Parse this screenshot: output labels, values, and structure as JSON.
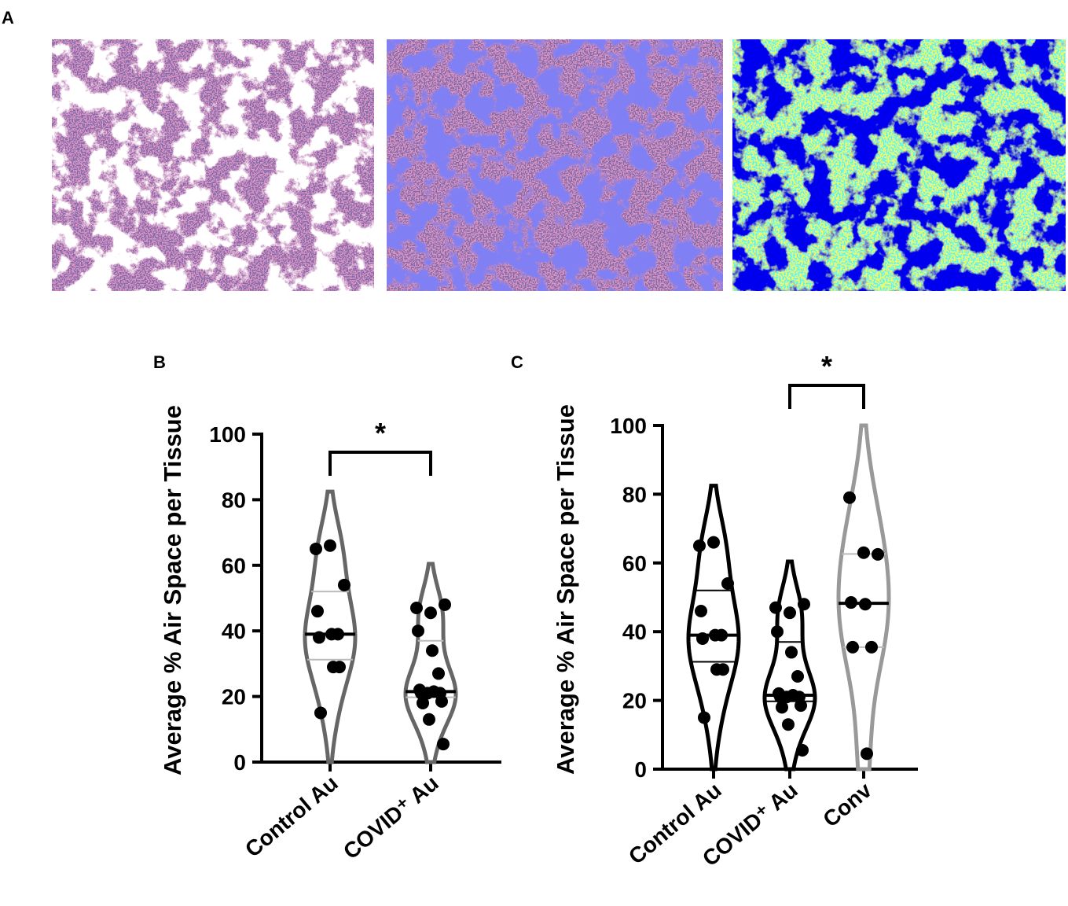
{
  "figure_label": "A",
  "chart_data": [
    {
      "type": "violin",
      "panel": "B",
      "ylabel": "Average % Air Space per Tissue",
      "categories": [
        "Control Au",
        "COVID⁺ Au"
      ],
      "colors": [
        "#666666",
        "#666666"
      ],
      "values": [
        [
          65,
          66,
          54,
          46,
          39,
          39,
          38,
          29,
          29,
          15
        ],
        [
          47,
          45.5,
          48,
          40,
          34,
          27,
          22,
          21.5,
          21,
          21,
          21,
          18.5,
          18,
          13,
          5.5
        ]
      ],
      "ylim": [
        0,
        100
      ],
      "yticks": [
        0,
        20,
        40,
        60,
        80,
        100
      ],
      "significance": [
        {
          "from": 0,
          "to": 1,
          "label": "*"
        }
      ]
    },
    {
      "type": "violin",
      "panel": "C",
      "ylabel": "Average % Air Space per Tissue",
      "categories": [
        "Control Au",
        "COVID⁺ Au",
        "Conv"
      ],
      "colors": [
        "#000000",
        "#000000",
        "#999999"
      ],
      "values": [
        [
          65,
          66,
          54,
          46,
          39,
          39,
          38,
          29,
          29,
          15
        ],
        [
          47,
          45.5,
          48,
          40,
          34,
          27,
          22,
          21.5,
          21,
          21,
          21,
          18.5,
          18,
          13,
          5.5
        ],
        [
          79,
          63,
          62.5,
          48.5,
          48,
          35.5,
          35.5,
          4.5
        ]
      ],
      "ylim": [
        0,
        100
      ],
      "yticks": [
        0,
        20,
        40,
        60,
        80,
        100
      ],
      "significance": [
        {
          "from": 1,
          "to": 2,
          "label": "*"
        }
      ]
    }
  ]
}
